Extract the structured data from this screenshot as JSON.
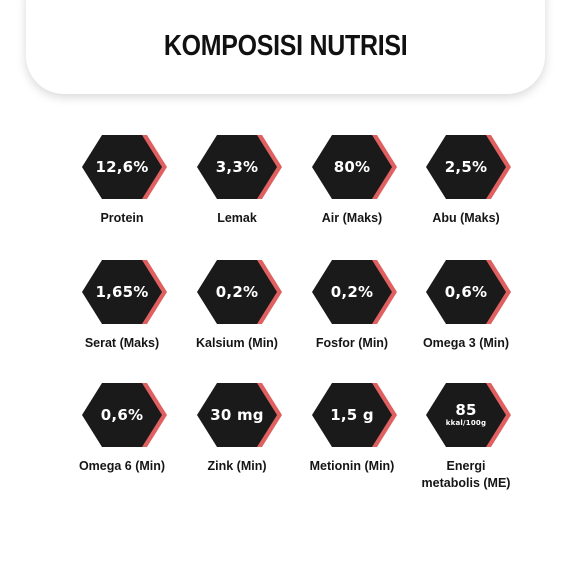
{
  "title": "KOMPOSISI NUTRISI",
  "colors": {
    "hexagon": "#1a1a1a",
    "accent": "#e06060",
    "text": "#151515"
  },
  "nutrients": [
    {
      "value": "12,6%",
      "label": "Protein"
    },
    {
      "value": "3,3%",
      "label": "Lemak"
    },
    {
      "value": "80%",
      "label": "Air (Maks)"
    },
    {
      "value": "2,5%",
      "label": "Abu (Maks)"
    },
    {
      "value": "1,65%",
      "label": "Serat (Maks)"
    },
    {
      "value": "0,2%",
      "label": "Kalsium (Min)"
    },
    {
      "value": "0,2%",
      "label": "Fosfor (Min)"
    },
    {
      "value": "0,6%",
      "label": "Omega 3 (Min)"
    },
    {
      "value": "0,6%",
      "label": "Omega 6 (Min)"
    },
    {
      "value": "30 mg",
      "label": "Zink (Min)"
    },
    {
      "value": "1,5 g",
      "label": "Metionin (Min)"
    },
    {
      "value": "85",
      "unit": "kkal/100g",
      "label": "Energi",
      "label_line2": "metabolis (ME)"
    }
  ]
}
